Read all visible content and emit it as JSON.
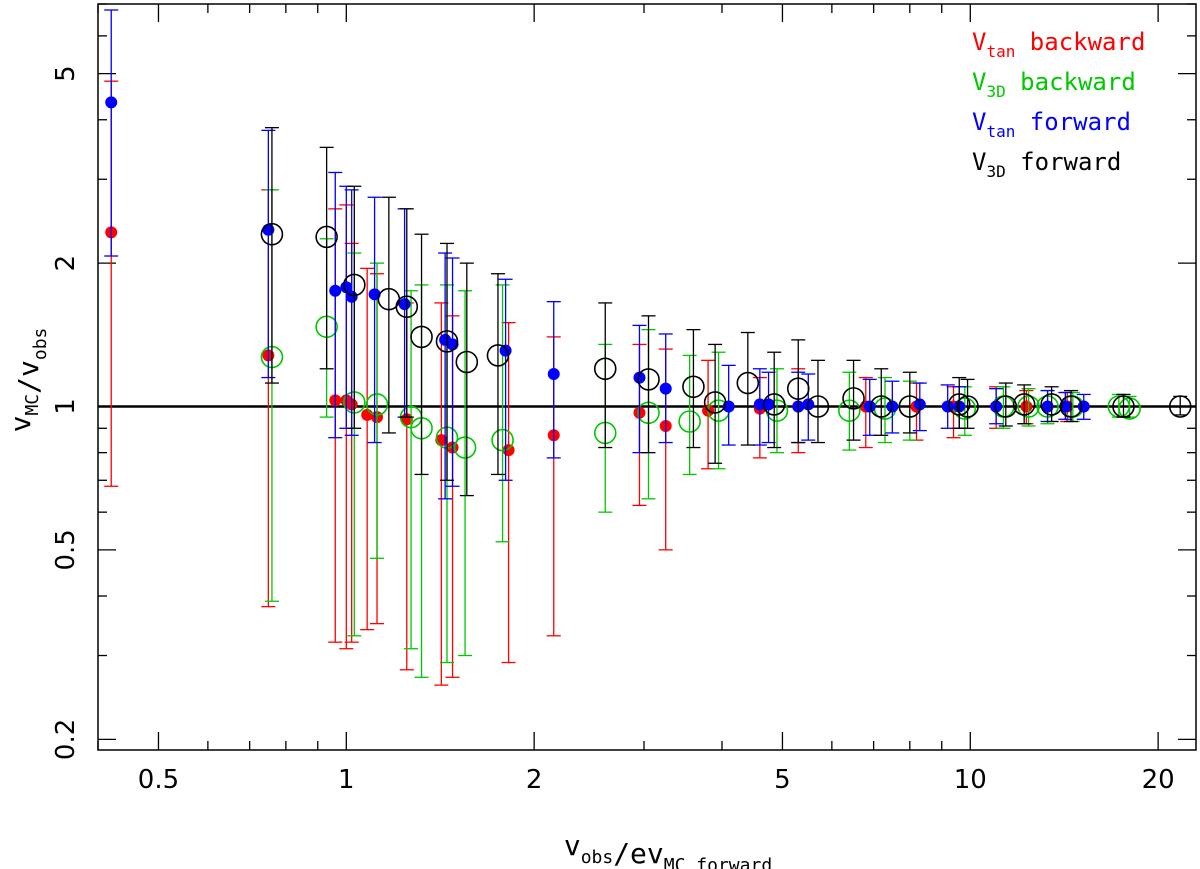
{
  "chart_data": {
    "type": "scatter",
    "x_scale": "log",
    "y_scale": "log",
    "xlim": [
      0.4,
      23
    ],
    "ylim": [
      0.19,
      7
    ],
    "grid": false,
    "legend_position": "top-right",
    "reference_line_y": 1,
    "xlabel": {
      "main": "v",
      "parts": [
        {
          "text": "v",
          "sub": "obs"
        },
        {
          "text": "/ev",
          "sub": "MC forward"
        }
      ]
    },
    "ylabel": {
      "parts": [
        {
          "text": "v",
          "sub": "MC"
        },
        {
          "text": "/v",
          "sub": "obs"
        }
      ]
    },
    "x_ticks": [
      {
        "value": 0.5,
        "label": "0.5"
      },
      {
        "value": 1,
        "label": "1"
      },
      {
        "value": 2,
        "label": "2"
      },
      {
        "value": 5,
        "label": "5"
      },
      {
        "value": 10,
        "label": "10"
      },
      {
        "value": 20,
        "label": "20"
      }
    ],
    "y_ticks": [
      {
        "value": 0.2,
        "label": "0.2"
      },
      {
        "value": 0.5,
        "label": "0.5"
      },
      {
        "value": 1,
        "label": "1"
      },
      {
        "value": 2,
        "label": "2"
      },
      {
        "value": 5,
        "label": "5"
      }
    ],
    "series": [
      {
        "name": "V_tan backward",
        "legend": {
          "main": "V",
          "sub": "tan",
          "rest": " backward"
        },
        "color": "#ff0000",
        "marker": "filled-circle",
        "points": [
          [
            0.42,
            2.32,
            0.68,
            4.82
          ],
          [
            0.75,
            1.28,
            0.38,
            2.85
          ],
          [
            0.96,
            1.03,
            0.32,
            2.6
          ],
          [
            1.0,
            1.03,
            0.31,
            2.65
          ],
          [
            1.02,
            1.01,
            0.32,
            2.2
          ],
          [
            1.08,
            0.96,
            0.34,
            1.95
          ],
          [
            1.12,
            0.95,
            0.35,
            1.9
          ],
          [
            1.25,
            0.94,
            0.28,
            1.65
          ],
          [
            1.42,
            0.85,
            0.26,
            1.65
          ],
          [
            1.48,
            0.82,
            0.27,
            1.55
          ],
          [
            1.82,
            0.81,
            0.29,
            1.5
          ],
          [
            2.15,
            0.87,
            0.33,
            1.4
          ],
          [
            2.95,
            0.97,
            0.62,
            1.35
          ],
          [
            3.25,
            0.91,
            0.5,
            1.32
          ],
          [
            3.8,
            0.98,
            0.74,
            1.25
          ],
          [
            4.6,
            0.99,
            0.78,
            1.15
          ],
          [
            5.3,
            1.0,
            0.8,
            1.2
          ],
          [
            6.8,
            1.0,
            0.82,
            1.15
          ],
          [
            8.2,
            1.0,
            0.85,
            1.12
          ],
          [
            9.4,
            1.0,
            0.86,
            1.1
          ],
          [
            11.0,
            1.0,
            0.9,
            1.1
          ],
          [
            12.3,
            1.0,
            0.92,
            1.08
          ],
          [
            14.3,
            1.0,
            0.93,
            1.07
          ]
        ]
      },
      {
        "name": "V_3D backward",
        "legend": {
          "main": "V",
          "sub": "3D",
          "rest": " backward"
        },
        "color": "#00c800",
        "marker": "open-circle",
        "points": [
          [
            0.76,
            1.27,
            0.39,
            2.85
          ],
          [
            0.93,
            1.47,
            0.95,
            2.25
          ],
          [
            1.03,
            1.02,
            0.33,
            2.1
          ],
          [
            1.12,
            1.01,
            0.48,
            2.0
          ],
          [
            1.27,
            0.95,
            0.31,
            1.75
          ],
          [
            1.32,
            0.9,
            0.27,
            1.8
          ],
          [
            1.45,
            0.86,
            0.29,
            1.8
          ],
          [
            1.55,
            0.82,
            0.3,
            1.75
          ],
          [
            1.78,
            0.85,
            0.52,
            1.8
          ],
          [
            2.6,
            0.88,
            0.6,
            1.35
          ],
          [
            3.05,
            0.97,
            0.64,
            1.45
          ],
          [
            3.55,
            0.93,
            0.72,
            1.28
          ],
          [
            3.95,
            0.98,
            0.74,
            1.3
          ],
          [
            4.9,
            0.98,
            0.8,
            1.2
          ],
          [
            6.4,
            0.98,
            0.81,
            1.18
          ],
          [
            7.3,
            0.99,
            0.84,
            1.15
          ],
          [
            8.0,
            1.0,
            0.85,
            1.13
          ],
          [
            9.8,
            0.99,
            0.87,
            1.1
          ],
          [
            11.3,
            1.0,
            0.9,
            1.1
          ],
          [
            12.4,
            1.0,
            0.91,
            1.09
          ],
          [
            13.3,
            1.0,
            0.92,
            1.08
          ],
          [
            14.6,
            1.0,
            0.93,
            1.07
          ],
          [
            17.3,
            1.0,
            0.95,
            1.06
          ],
          [
            18.0,
            0.99,
            0.95,
            1.05
          ]
        ]
      },
      {
        "name": "V_tan forward",
        "legend": {
          "main": "V",
          "sub": "tan",
          "rest": " forward"
        },
        "color": "#0000ff",
        "marker": "filled-circle",
        "points": [
          [
            0.42,
            4.35,
            2.07,
            6.8
          ],
          [
            0.75,
            2.35,
            1.15,
            3.8
          ],
          [
            0.96,
            1.75,
            0.86,
            3.1
          ],
          [
            1.0,
            1.78,
            0.9,
            2.9
          ],
          [
            1.02,
            1.7,
            0.87,
            2.85
          ],
          [
            1.11,
            1.72,
            0.84,
            2.75
          ],
          [
            1.24,
            1.64,
            0.95,
            2.6
          ],
          [
            1.44,
            1.38,
            0.64,
            2.1
          ],
          [
            1.48,
            1.35,
            0.68,
            2.05
          ],
          [
            1.8,
            1.31,
            0.7,
            1.85
          ],
          [
            2.15,
            1.17,
            0.78,
            1.66
          ],
          [
            2.95,
            1.15,
            0.8,
            1.48
          ],
          [
            3.25,
            1.09,
            0.84,
            1.42
          ],
          [
            4.1,
            1.0,
            0.83,
            1.22
          ],
          [
            4.6,
            1.01,
            0.83,
            1.2
          ],
          [
            4.75,
            1.01,
            0.84,
            1.18
          ],
          [
            5.3,
            1.0,
            0.84,
            1.18
          ],
          [
            5.5,
            1.01,
            0.85,
            1.17
          ],
          [
            6.9,
            1.0,
            0.87,
            1.14
          ],
          [
            7.5,
            1.0,
            0.88,
            1.13
          ],
          [
            8.3,
            1.01,
            0.89,
            1.12
          ],
          [
            9.2,
            1.0,
            0.9,
            1.11
          ],
          [
            9.6,
            1.0,
            0.9,
            1.1
          ],
          [
            11.0,
            1.0,
            0.92,
            1.09
          ],
          [
            13.3,
            1.0,
            0.93,
            1.08
          ],
          [
            14.2,
            1.0,
            0.94,
            1.07
          ],
          [
            15.2,
            1.0,
            0.94,
            1.06
          ]
        ]
      },
      {
        "name": "V_3D forward",
        "legend": {
          "main": "V",
          "sub": "3D",
          "rest": " forward"
        },
        "color": "#000000",
        "marker": "open-circle",
        "points": [
          [
            0.76,
            2.3,
            1.12,
            3.85
          ],
          [
            0.93,
            2.27,
            1.2,
            3.5
          ],
          [
            1.03,
            1.8,
            0.9,
            2.9
          ],
          [
            1.17,
            1.68,
            0.88,
            2.75
          ],
          [
            1.25,
            1.62,
            0.95,
            2.6
          ],
          [
            1.32,
            1.4,
            0.72,
            2.3
          ],
          [
            1.45,
            1.37,
            0.7,
            2.2
          ],
          [
            1.56,
            1.24,
            0.65,
            2.0
          ],
          [
            1.75,
            1.28,
            0.72,
            1.9
          ],
          [
            2.6,
            1.2,
            0.82,
            1.65
          ],
          [
            3.05,
            1.14,
            0.8,
            1.55
          ],
          [
            3.6,
            1.1,
            0.82,
            1.45
          ],
          [
            3.9,
            1.02,
            0.76,
            1.35
          ],
          [
            4.4,
            1.12,
            0.83,
            1.43
          ],
          [
            4.85,
            1.01,
            0.82,
            1.3
          ],
          [
            5.3,
            1.09,
            0.84,
            1.38
          ],
          [
            5.7,
            1.0,
            0.84,
            1.25
          ],
          [
            6.5,
            1.04,
            0.85,
            1.25
          ],
          [
            7.2,
            1.0,
            0.87,
            1.2
          ],
          [
            8.0,
            1.0,
            0.88,
            1.18
          ],
          [
            9.6,
            1.01,
            0.9,
            1.15
          ],
          [
            9.9,
            1.0,
            0.9,
            1.14
          ],
          [
            11.4,
            1.0,
            0.91,
            1.12
          ],
          [
            12.2,
            1.01,
            0.92,
            1.11
          ],
          [
            13.5,
            1.01,
            0.93,
            1.1
          ],
          [
            14.5,
            1.0,
            0.93,
            1.08
          ],
          [
            17.6,
            1.0,
            0.95,
            1.06
          ],
          [
            21.7,
            1.0,
            0.96,
            1.05
          ]
        ]
      }
    ]
  }
}
